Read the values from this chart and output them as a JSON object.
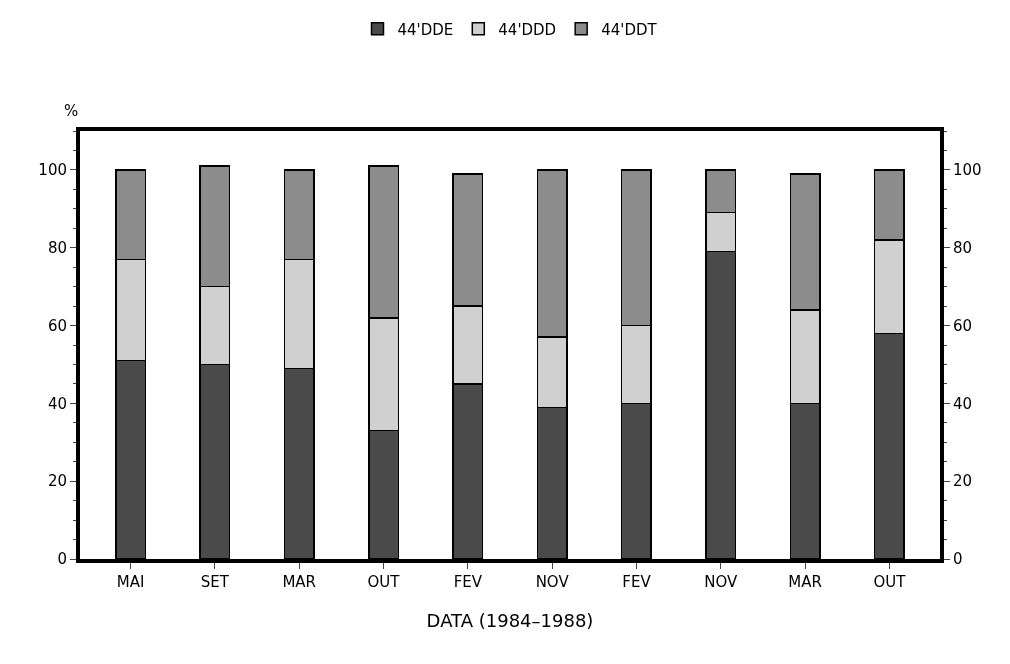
{
  "chart_data": {
    "type": "bar",
    "stacked": true,
    "xlabel": "DATA (1984–1988)",
    "ylabel": "%",
    "categories": [
      "MAI",
      "SET",
      "MAR",
      "OUT",
      "FEV",
      "NOV",
      "FEV",
      "NOV",
      "MAR",
      "OUT"
    ],
    "series": [
      {
        "name": "44'DDE",
        "color": "#4a4a4a",
        "values": [
          51,
          50,
          49,
          33,
          45,
          39,
          40,
          79,
          40,
          58
        ]
      },
      {
        "name": "44'DDD",
        "color": "#d0d0d0",
        "values": [
          26,
          20,
          28,
          29,
          20,
          18,
          20,
          10,
          24,
          24
        ]
      },
      {
        "name": "44'DDT",
        "color": "#8c8c8c",
        "values": [
          23,
          31,
          23,
          39,
          34,
          43,
          40,
          11,
          35,
          18
        ]
      }
    ],
    "ylim": [
      0,
      110
    ],
    "yticks": [
      0,
      20,
      40,
      60,
      80,
      100
    ],
    "y2lim": [
      0,
      110
    ],
    "y2ticks": [
      0,
      20,
      40,
      60,
      80,
      100
    ],
    "grid": false,
    "legend": "top"
  }
}
